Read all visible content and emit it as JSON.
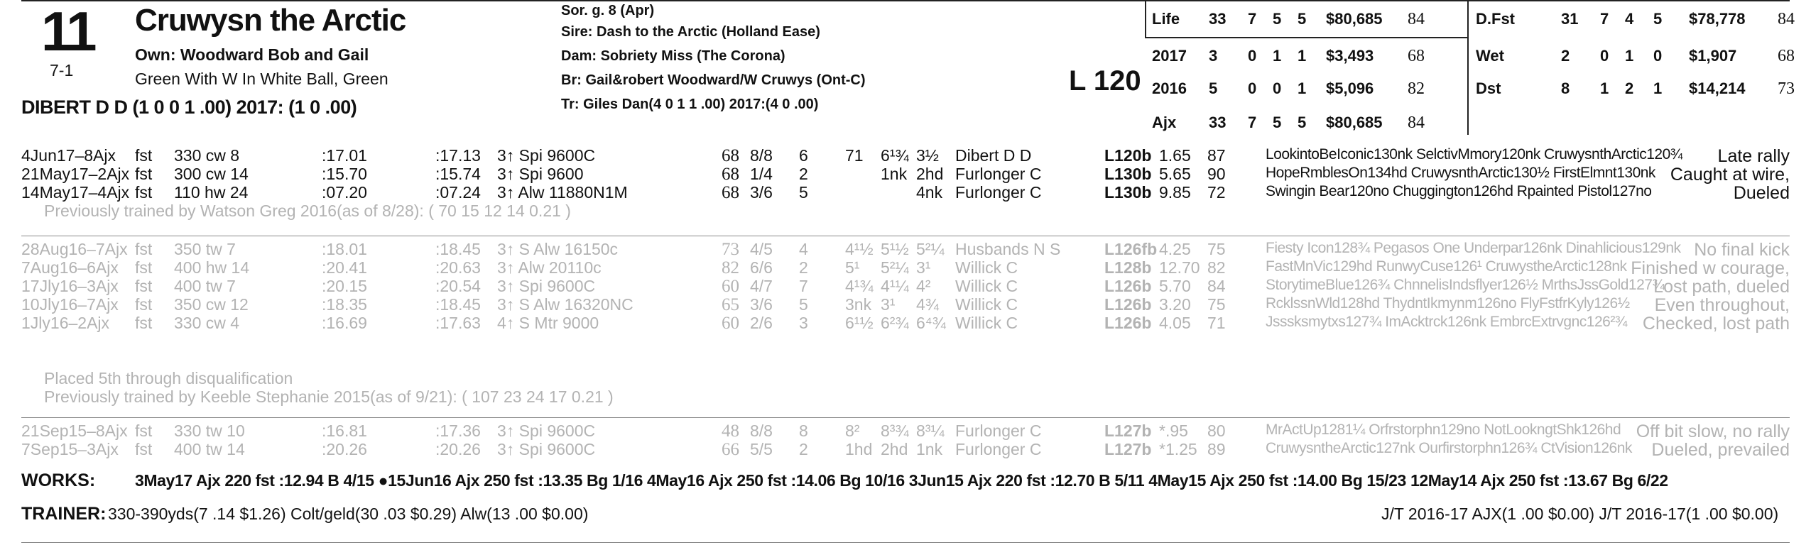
{
  "header": {
    "program_number": "11",
    "odds": "7-1",
    "horse_name": "Cruwysn the Arctic",
    "owner": "Own: Woodward Bob and Gail",
    "silks": "Green With W In White Ball, Green",
    "jockey_line": "DIBERT D D (1 0 0 1 .00) 2017: (1 0 .00)",
    "sex_age": "Sor. g. 8 (Apr)",
    "sire": "Sire: Dash to the Arctic (Holland Ease)",
    "dam": "Dam: Sobriety Miss (The Corona)",
    "breeder": "Br:   Gail&robert Woodward/W Cruwys (Ont-C)",
    "trainer": "Tr:   Giles Dan(4 0 1 1 .00)  2017:(4 0 .00)",
    "weight": "L 120"
  },
  "records_left": [
    {
      "label": "Life",
      "starts": "33",
      "w": "7",
      "p": "5",
      "s": "5",
      "earn": "$80,685",
      "fig": "84"
    },
    {
      "label": "2017",
      "starts": "3",
      "w": "0",
      "p": "1",
      "s": "1",
      "earn": "$3,493",
      "fig": "68"
    },
    {
      "label": "2016",
      "starts": "5",
      "w": "0",
      "p": "0",
      "s": "1",
      "earn": "$5,096",
      "fig": "82"
    },
    {
      "label": "Ajx",
      "starts": "33",
      "w": "7",
      "p": "5",
      "s": "5",
      "earn": "$80,685",
      "fig": "84"
    }
  ],
  "records_right": [
    {
      "label": "D.Fst",
      "starts": "31",
      "w": "7",
      "p": "4",
      "s": "5",
      "earn": "$78,778",
      "fig": "84"
    },
    {
      "label": "Wet",
      "starts": "2",
      "w": "0",
      "p": "1",
      "s": "0",
      "earn": "$1,907",
      "fig": "68"
    },
    {
      "label": "Dst",
      "starts": "8",
      "w": "1",
      "p": "2",
      "s": "1",
      "earn": "$14,214",
      "fig": "73"
    }
  ],
  "races_current": [
    {
      "date": "4Jun17–8Ajx",
      "surf": "fst",
      "dist": "330 cw 8",
      "t1": ":17.01",
      "t2": ":17.13",
      "cls": "3↑ Spi 9600C",
      "sp": "68",
      "pp": "8/8",
      "st": "6",
      "c1": "71",
      "c2": "6¹¾",
      "c3": "3½",
      "jockey": "Dibert D D",
      "wt": "L120b",
      "odds": "1.65",
      "fig": "87",
      "comment": "LookintoBeIconic130nk SelctivMmory120nk CruwysnthArctic120¾",
      "remark": "Late rally"
    },
    {
      "date": "21May17–2Ajx",
      "surf": "fst",
      "dist": "300 cw 14",
      "t1": ":15.70",
      "t2": ":15.74",
      "cls": "3↑ Spi 9600",
      "sp": "68",
      "pp": "1/4",
      "st": "2",
      "c1": "",
      "c2": "1nk",
      "c3": "2hd",
      "jockey": "Furlonger C",
      "wt": "L130b",
      "odds": "5.65",
      "fig": "90",
      "comment": "HopeRmblesOn134hd CruwysnthArctic130½ FirstElmnt130nk",
      "remark": "Caught at wire,"
    },
    {
      "date": "14May17–4Ajx",
      "surf": "fst",
      "dist": "110 hw 24",
      "t1": ":07.20",
      "t2": ":07.24",
      "cls": "3↑ Alw 11880N1M",
      "sp": "68",
      "pp": "3/6",
      "st": "5",
      "c1": "",
      "c2": "",
      "c3": "4nk",
      "jockey": "Furlonger C",
      "wt": "L130b",
      "odds": "9.85",
      "fig": "72",
      "comment": "Swingin Bear120no Chuggington126hd Rpainted Pistol127no",
      "remark": "Dueled"
    }
  ],
  "note1": "Previously trained by Watson Greg 2016(as of 8/28): ( 70 15 12 14 0.21 )",
  "races_2016": [
    {
      "date": "28Aug16–7Ajx",
      "surf": "fst",
      "dist": "350 tw 7",
      "t1": ":18.01",
      "t2": ":18.45",
      "cls": "3↑ S Alw 16150c",
      "sp": "73",
      "pp": "4/5",
      "st": "4",
      "c1": "4¹½",
      "c2": "5¹½",
      "c3": "5²¼",
      "jockey": "Husbands N S",
      "wt": "L126fb",
      "odds": "4.25",
      "fig": "75",
      "comment": "Fiesty Icon128¾ Pegasos One Underpar126nk Dinahlicious129nk",
      "remark": "No final kick"
    },
    {
      "date": "7Aug16–6Ajx",
      "surf": "fst",
      "dist": "400 hw 14",
      "t1": ":20.41",
      "t2": ":20.63",
      "cls": "3↑ Alw 20110c",
      "sp": "82",
      "pp": "6/6",
      "st": "2",
      "c1": "5¹",
      "c2": "5²¼",
      "c3": "3¹",
      "jockey": "Willick C",
      "wt": "L128b",
      "odds": "12.70",
      "fig": "82",
      "comment": "FastMnVic129hd RunwyCuse126¹ CruwystheArctic128nk",
      "remark": "Finished w courage,"
    },
    {
      "date": "17Jly16–3Ajx",
      "surf": "fst",
      "dist": "400 tw 7",
      "t1": ":20.15",
      "t2": ":20.54",
      "cls": "3↑ Spi 9600C",
      "sp": "60",
      "pp": "4/7",
      "st": "7",
      "c1": "4¹¾",
      "c2": "4¹¼",
      "c3": "4²",
      "jockey": "Willick C",
      "wt": "L126b",
      "odds": "5.70",
      "fig": "84",
      "comment": "StorytimeBlue126¾ ChnnelisIndsflyer126½ MrthsJssGold127¾",
      "remark": "Lost path, dueled"
    },
    {
      "date": "10Jly16–7Ajx",
      "surf": "fst",
      "dist": "350 cw 12",
      "t1": ":18.35",
      "t2": ":18.45",
      "cls": "3↑ S Alw 16320NC",
      "sp": "65",
      "pp": "3/6",
      "st": "5",
      "c1": "3nk",
      "c2": "3¹",
      "c3": "4¾",
      "jockey": "Willick C",
      "wt": "L126b",
      "odds": "3.20",
      "fig": "75",
      "comment": "RcklssnWld128hd ThydntIkmynm126no FlyFstfrKyly126½",
      "remark": "Even throughout,"
    },
    {
      "date": "1Jly16–2Ajx",
      "surf": "fst",
      "dist": "330 cw 4",
      "t1": ":16.69",
      "t2": ":17.63",
      "cls": "4↑ S Mtr 9000",
      "sp": "60",
      "pp": "2/6",
      "st": "3",
      "c1": "6¹½",
      "c2": "6²¾",
      "c3": "6⁴¾",
      "jockey": "Willick C",
      "wt": "L126b",
      "odds": "4.05",
      "fig": "71",
      "comment": "Jsssksmytxs127¾ ImAcktrck126nk EmbrcExtrvgnc126²¾",
      "remark": "Checked, lost path"
    }
  ],
  "note2": "Placed 5th through disqualification",
  "note3": "Previously trained by Keeble Stephanie 2015(as of 9/21): ( 107 23 24 17 0.21 )",
  "races_2015": [
    {
      "date": "21Sep15–8Ajx",
      "surf": "fst",
      "dist": "330 tw 10",
      "t1": ":16.81",
      "t2": ":17.36",
      "cls": "3↑ Spi 9600C",
      "sp": "48",
      "pp": "8/8",
      "st": "8",
      "c1": "8²",
      "c2": "8³¾",
      "c3": "8³¼",
      "jockey": "Furlonger C",
      "wt": "L127b",
      "odds": "*.95",
      "fig": "80",
      "comment": "MrActUp1281¼ Orfrstorphn129no NotLookngtShk126hd",
      "remark": "Off bit slow, no rally"
    },
    {
      "date": "7Sep15–3Ajx",
      "surf": "fst",
      "dist": "400 tw 14",
      "t1": ":20.26",
      "t2": ":20.26",
      "cls": "3↑ Spi 9600C",
      "sp": "66",
      "pp": "5/5",
      "st": "2",
      "c1": "1hd",
      "c2": "2hd",
      "c3": "1nk",
      "jockey": "Furlonger C",
      "wt": "L127b",
      "odds": "*1.25",
      "fig": "89",
      "comment": "CruwysntheArctic127nk Ourfirstorphn126¾ CtVision126nk",
      "remark": "Dueled, prevailed"
    }
  ],
  "works": {
    "label": "WORKS:",
    "text": "3May17 Ajx 220 fst :12.94 B 4/15  ●15Jun16 Ajx 250 fst :13.35 Bg 1/16  4May16 Ajx 250 fst :14.06 Bg 10/16  3Jun15 Ajx 220 fst :12.70 B 5/11  4May15 Ajx 250 fst :14.00 Bg 15/23  12May14 Ajx 250 fst :13.67 Bg 6/22"
  },
  "trainer_stats": {
    "label": "TRAINER:",
    "text": "330-390yds(7 .14 $1.26) Colt/geld(30 .03 $0.29) Alw(13 .00 $0.00)",
    "jt": "J/T 2016-17 AJX(1 .00 $0.00)  J/T 2016-17(1 .00 $0.00)"
  }
}
